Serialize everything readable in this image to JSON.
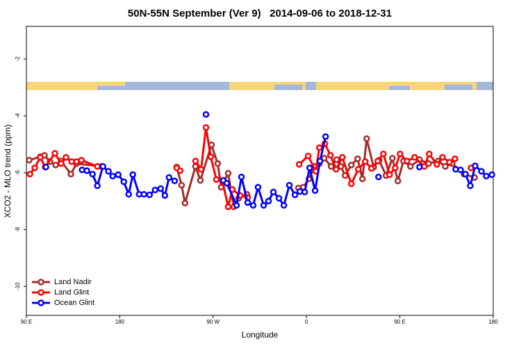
{
  "chart_data": {
    "type": "line",
    "title": "50N-55N September (Ver 9)   2014-09-06 to 2018-12-31",
    "x_label": "Longitude",
    "y_label": "XCO2 - MLO trend (ppm)",
    "xlim": [
      90,
      540
    ],
    "xticks": [
      {
        "value": 90,
        "label": "90 E"
      },
      {
        "value": 180,
        "label": "180"
      },
      {
        "value": 270,
        "label": "90 W"
      },
      {
        "value": 360,
        "label": "0"
      },
      {
        "value": 450,
        "label": "90 E"
      },
      {
        "value": 540,
        "label": "180"
      }
    ],
    "ylim": [
      -11.02,
      -0.85
    ],
    "yticks": [
      -2,
      -4,
      -6,
      -8,
      -10
    ],
    "legend": "bottomleft",
    "series": [
      {
        "name": "Land Nadir",
        "color": "#a52a2a",
        "x": [
          92.7,
          103.4,
          107.4,
          112.8,
          118.2,
          123.5,
          132.9,
          138.3,
          161.8,
          null,
          234.9,
          239.6,
          242.9,
          253.0,
          257.7,
          268.4,
          274.4,
          277.8,
          284.5,
          289.9,
          294.6,
          302.6,
          null,
          352.2,
          356.9,
          362.3,
          367.7,
          372.4,
          377.1,
          383.8,
          389.1,
          393.2,
          397.2,
          403.2,
          409.3,
          413.9,
          418.0,
          424.7,
          430.0,
          436.7,
          442.8,
          448.1,
          453.5,
          460.2,
          468.9,
          477.7,
          487.0,
          493.8,
          500.5,
          511.9,
          522.0
        ],
        "values": [
          -5.56,
          -5.44,
          -5.39,
          -5.61,
          -5.73,
          -5.59,
          -6.05,
          -5.68,
          -5.78,
          null,
          -5.8,
          -6.44,
          -7.07,
          -5.78,
          -6.27,
          -5.02,
          -5.68,
          -6.51,
          -6.02,
          -7.2,
          -6.9,
          -6.76,
          null,
          -6.54,
          -6.51,
          -6.22,
          -5.78,
          -5.68,
          -5.49,
          -5.78,
          -5.54,
          -5.78,
          -6.1,
          -5.73,
          -5.51,
          -6.22,
          -4.8,
          -5.8,
          -5.56,
          -6.1,
          -5.49,
          -6.29,
          -5.59,
          -5.78,
          -5.54,
          -5.68,
          -5.59,
          -5.78,
          -5.68,
          -6.05,
          -6.17
        ]
      },
      {
        "name": "Land Glint",
        "color": "#ff0000",
        "x": [
          93.4,
          98.0,
          103.4,
          108.1,
          117.5,
          123.5,
          128.2,
          133.6,
          138.3,
          143.0,
          158.4,
          null,
          234.9,
          238.2,
          null,
          253.0,
          258.4,
          263.1,
          267.7,
          273.1,
          279.1,
          284.5,
          288.5,
          295.9,
          303.3,
          null,
          352.9,
          361.6,
          369.0,
          372.4,
          377.7,
          383.1,
          388.5,
          394.5,
          403.2,
          409.9,
          416.6,
          422.6,
          428.7,
          434.1,
          440.1,
          445.5,
          450.2,
          456.9,
          464.2,
          473.6,
          478.3,
          485.7,
          491.1,
          497.8,
          503.1,
          null,
          518.6
        ],
        "values": [
          -6.05,
          -5.83,
          -5.46,
          -5.8,
          -5.32,
          -5.68,
          -5.46,
          -5.61,
          -5.61,
          -5.56,
          -5.78,
          null,
          -5.83,
          -5.93,
          null,
          -5.59,
          -5.88,
          -4.41,
          -5.44,
          -6.24,
          -6.32,
          -7.2,
          -6.59,
          -6.8,
          -6.88,
          null,
          -5.71,
          -5.41,
          -5.95,
          -5.12,
          -4.98,
          -5.39,
          -5.88,
          -5.46,
          -6.39,
          -5.88,
          -5.61,
          -5.85,
          -5.59,
          -5.34,
          -6.07,
          -5.83,
          -5.34,
          -5.59,
          -5.46,
          -5.78,
          -5.34,
          -5.71,
          -5.46,
          -5.63,
          -5.51,
          null,
          -5.83
        ]
      },
      {
        "name": "Ocean Glint",
        "color": "#0000ff",
        "x": [
          108.8,
          null,
          143.7,
          148.3,
          153.7,
          158.4,
          163.8,
          169.1,
          173.2,
          178.5,
          183.9,
          188.6,
          192.6,
          198.7,
          203.3,
          208.7,
          214.1,
          219.4,
          223.5,
          227.5,
          232.9,
          null,
          263.1,
          null,
          279.8,
          283.2,
          292.6,
          297.3,
          303.3,
          308.6,
          313.3,
          318.7,
          323.4,
          328.1,
          333.5,
          338.2,
          343.5,
          348.9,
          353.6,
          358.3,
          363.0,
          368.3,
          373.0,
          378.4,
          null,
          429.4,
          null,
          468.9,
          null,
          503.8,
          508.5,
          513.2,
          517.9,
          522.6,
          528.6,
          533.3,
          538.7
        ],
        "values": [
          -5.8,
          null,
          -5.9,
          -5.93,
          -6.05,
          -6.46,
          -5.78,
          -5.95,
          -6.12,
          -6.07,
          -6.32,
          -6.76,
          -6.07,
          -6.76,
          -6.76,
          -6.78,
          -6.61,
          -6.56,
          -6.8,
          -6.17,
          -6.29,
          null,
          -3.95,
          null,
          -6.27,
          -6.37,
          -7.15,
          -6.15,
          -7.05,
          -7.15,
          -6.51,
          -7.15,
          -7.0,
          -6.68,
          -6.9,
          -7.15,
          -6.44,
          -6.78,
          -6.66,
          -6.68,
          -5.83,
          -6.63,
          -5.59,
          -4.73,
          null,
          -6.15,
          null,
          -5.8,
          null,
          -5.88,
          -5.9,
          -6.05,
          -6.46,
          -5.76,
          -5.95,
          -6.12,
          -6.07
        ]
      }
    ]
  }
}
